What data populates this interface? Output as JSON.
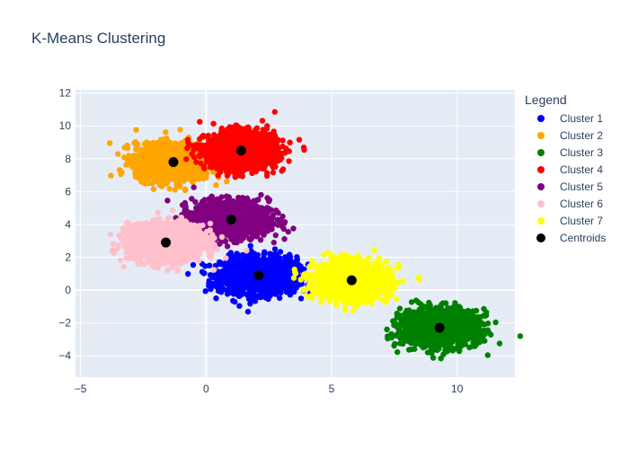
{
  "chart_data": {
    "type": "scatter",
    "title": "K-Means Clustering",
    "xlabel": "",
    "ylabel": "",
    "xlim": [
      -5.2,
      12.3
    ],
    "ylim": [
      -5.3,
      12.2
    ],
    "x_ticks": [
      -5,
      0,
      5,
      10
    ],
    "y_ticks": [
      -4,
      -2,
      0,
      2,
      4,
      6,
      8,
      10,
      12
    ],
    "grid": true,
    "background": "#e5ecf6",
    "legend": {
      "title": "Legend",
      "position": "right"
    },
    "series": [
      {
        "name": "Cluster 1",
        "color": "#0000ff",
        "center": [
          2.1,
          0.9
        ],
        "spread": [
          0.75,
          0.55
        ]
      },
      {
        "name": "Cluster 2",
        "color": "#ffa500",
        "center": [
          -1.3,
          7.8
        ],
        "spread": [
          0.75,
          0.55
        ]
      },
      {
        "name": "Cluster 3",
        "color": "#008000",
        "center": [
          9.3,
          -2.3
        ],
        "spread": [
          0.75,
          0.55
        ]
      },
      {
        "name": "Cluster 4",
        "color": "#ff0000",
        "center": [
          1.4,
          8.5
        ],
        "spread": [
          0.7,
          0.55
        ]
      },
      {
        "name": "Cluster 5",
        "color": "#800080",
        "center": [
          1.0,
          4.3
        ],
        "spread": [
          0.75,
          0.55
        ]
      },
      {
        "name": "Cluster 6",
        "color": "#ffc0cb",
        "center": [
          -1.6,
          2.9
        ],
        "spread": [
          0.75,
          0.55
        ]
      },
      {
        "name": "Cluster 7",
        "color": "#ffff00",
        "center": [
          5.8,
          0.6
        ],
        "spread": [
          0.75,
          0.55
        ]
      }
    ],
    "centroids": {
      "name": "Centroids",
      "color": "#000000",
      "x": [
        2.1,
        -1.3,
        9.3,
        1.4,
        1.0,
        -1.6,
        5.8
      ],
      "y": [
        0.9,
        7.8,
        -2.3,
        8.5,
        4.3,
        2.9,
        0.6
      ]
    }
  }
}
